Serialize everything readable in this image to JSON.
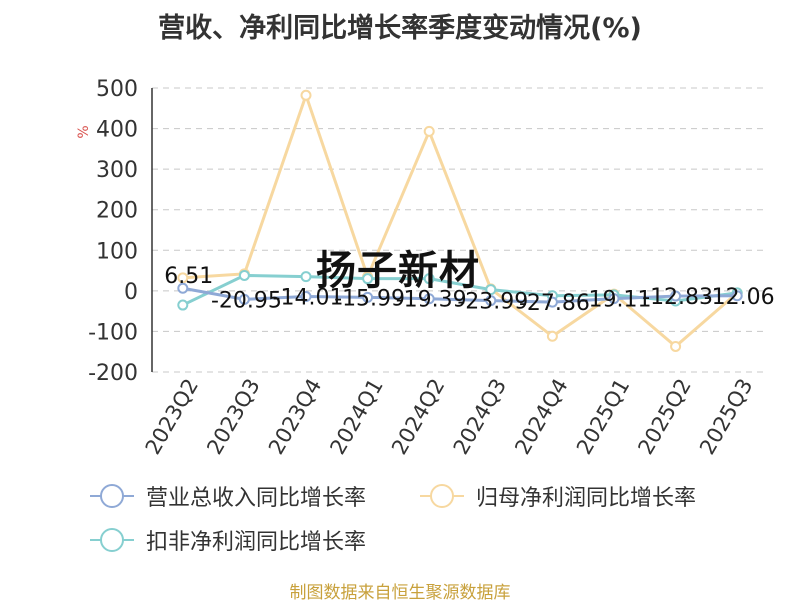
{
  "title": "营收、净利同比增长率季度变动情况(%)",
  "watermark": "扬子新材",
  "source": "制图数据来自恒生聚源数据库",
  "colors": {
    "revenue": "#8fa9d6",
    "net_profit": "#f7d8a0",
    "deducted_profit": "#86cfd0",
    "grid": "#c8c8c8",
    "axis": "#333333",
    "ylabel_unit": "#d9534f"
  },
  "chart_data": {
    "type": "line",
    "title": "营收、净利同比增长率季度变动情况(%)",
    "ylabel": "%",
    "ylim": [
      -200,
      500
    ],
    "yticks": [
      500,
      400,
      300,
      200,
      100,
      0,
      -100,
      -200
    ],
    "categories": [
      "2023Q2",
      "2023Q3",
      "2023Q4",
      "2024Q1",
      "2024Q2",
      "2024Q3",
      "2024Q4",
      "2025Q1",
      "2025Q2",
      "2025Q3"
    ],
    "grid": true,
    "legend_placement": "bottom",
    "series": [
      {
        "name": "营业总收入同比增长率",
        "values": [
          6.51,
          -20.95,
          -14.01,
          -15.99,
          -19.39,
          -23.99,
          -27.86,
          -19.11,
          -12.83,
          -12.06
        ]
      },
      {
        "name": "归母净利润同比增长率",
        "values": [
          32,
          42,
          482,
          35,
          393,
          5,
          -112,
          -8,
          -137,
          -5
        ]
      },
      {
        "name": "扣非净利润同比增长率",
        "values": [
          -35,
          38,
          35,
          30,
          30,
          3,
          -12,
          -10,
          -25,
          -5
        ]
      }
    ],
    "data_labels": [
      "6.51",
      "-20.95",
      "-14.01",
      "-15.99",
      "-19.39",
      "-23.99",
      "-27.86",
      "-19.11",
      "-12.83",
      "-12.06"
    ]
  }
}
